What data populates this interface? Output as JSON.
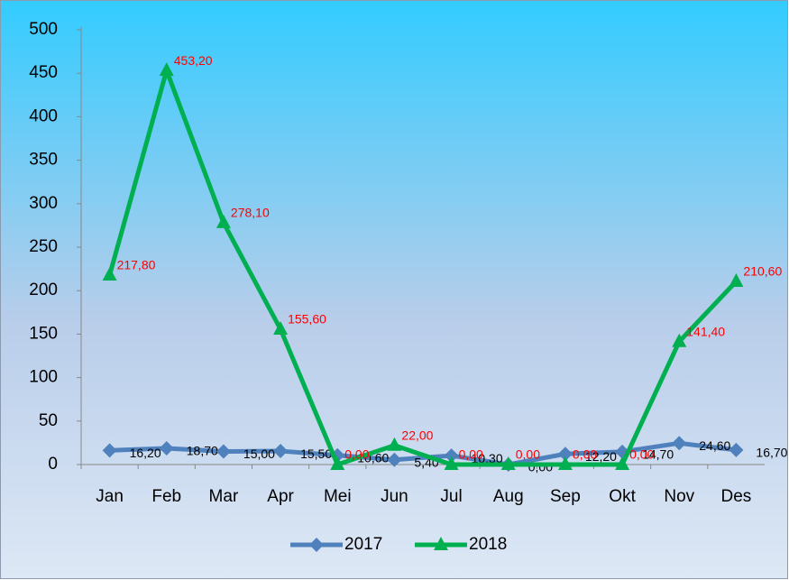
{
  "chart_data": {
    "type": "line",
    "categories": [
      "Jan",
      "Feb",
      "Mar",
      "Apr",
      "Mei",
      "Jun",
      "Jul",
      "Aug",
      "Sep",
      "Okt",
      "Nov",
      "Des"
    ],
    "series": [
      {
        "name": "2017",
        "color": "#4f81bd",
        "label_color": "#000000",
        "marker": "diamond",
        "values": [
          16.2,
          18.7,
          15.0,
          15.5,
          10.6,
          5.4,
          10.3,
          0.0,
          12.2,
          14.7,
          24.6,
          16.7
        ],
        "value_labels": [
          "16,20",
          "18,70",
          "15,00",
          "15,50",
          "10,60",
          "5,40",
          "10,30",
          "0,00",
          "12,20",
          "14,70",
          "24,60",
          "16,70"
        ]
      },
      {
        "name": "2018",
        "color": "#00b050",
        "label_color": "#ff0000",
        "marker": "triangle",
        "values": [
          217.8,
          453.2,
          278.1,
          155.6,
          0.0,
          22.0,
          0.0,
          0.0,
          0.0,
          0.0,
          141.4,
          210.6
        ],
        "value_labels": [
          "217,80",
          "453,20",
          "278,10",
          "155,60",
          "0,00",
          "22,00",
          "0,00",
          "0,00",
          "0,00",
          "0,00",
          "141,40",
          "210,60"
        ]
      }
    ],
    "ylim": [
      0,
      500
    ],
    "yticks": [
      0,
      50,
      100,
      150,
      200,
      250,
      300,
      350,
      400,
      450,
      500
    ],
    "grid": false,
    "legend": "bottom"
  }
}
